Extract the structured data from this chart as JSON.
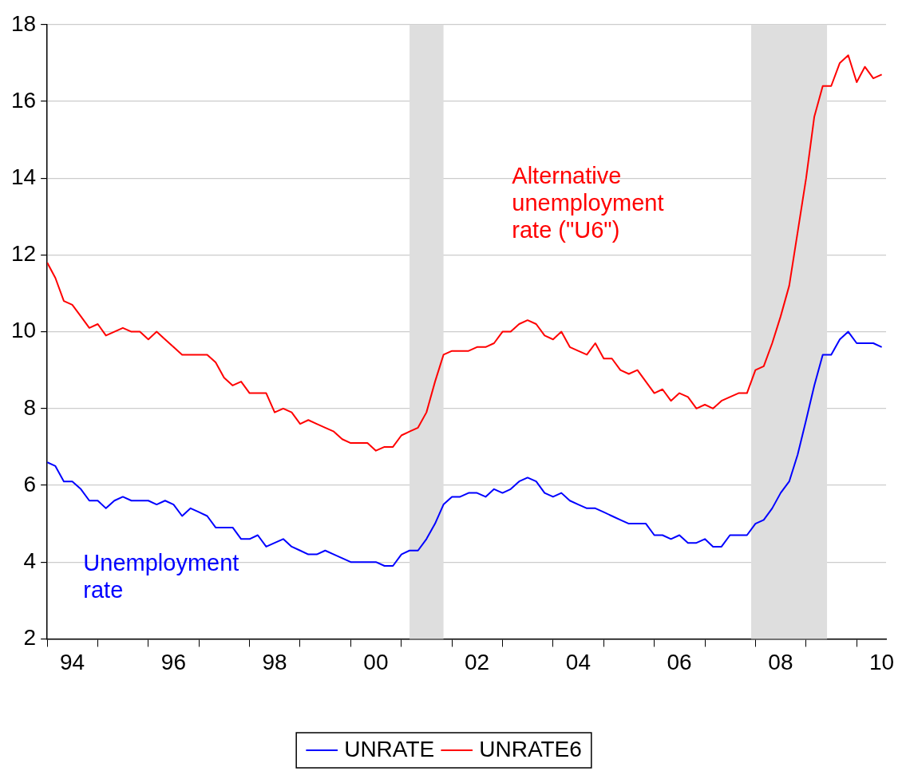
{
  "chart_data": {
    "type": "line",
    "x": [
      "1994-01",
      "1994-03",
      "1994-05",
      "1994-07",
      "1994-09",
      "1994-11",
      "1995-01",
      "1995-03",
      "1995-05",
      "1995-07",
      "1995-09",
      "1995-11",
      "1996-01",
      "1996-03",
      "1996-05",
      "1996-07",
      "1996-09",
      "1996-11",
      "1997-01",
      "1997-03",
      "1997-05",
      "1997-07",
      "1997-09",
      "1997-11",
      "1998-01",
      "1998-03",
      "1998-05",
      "1998-07",
      "1998-09",
      "1998-11",
      "1999-01",
      "1999-03",
      "1999-05",
      "1999-07",
      "1999-09",
      "1999-11",
      "2000-01",
      "2000-03",
      "2000-05",
      "2000-07",
      "2000-09",
      "2000-11",
      "2001-01",
      "2001-03",
      "2001-05",
      "2001-07",
      "2001-09",
      "2001-11",
      "2002-01",
      "2002-03",
      "2002-05",
      "2002-07",
      "2002-09",
      "2002-11",
      "2003-01",
      "2003-03",
      "2003-05",
      "2003-07",
      "2003-09",
      "2003-11",
      "2004-01",
      "2004-03",
      "2004-05",
      "2004-07",
      "2004-09",
      "2004-11",
      "2005-01",
      "2005-03",
      "2005-05",
      "2005-07",
      "2005-09",
      "2005-11",
      "2006-01",
      "2006-03",
      "2006-05",
      "2006-07",
      "2006-09",
      "2006-11",
      "2007-01",
      "2007-03",
      "2007-05",
      "2007-07",
      "2007-09",
      "2007-11",
      "2008-01",
      "2008-03",
      "2008-05",
      "2008-07",
      "2008-09",
      "2008-11",
      "2009-01",
      "2009-03",
      "2009-05",
      "2009-07",
      "2009-09",
      "2009-11",
      "2010-01",
      "2010-03",
      "2010-05",
      "2010-07"
    ],
    "series": [
      {
        "name": "UNRATE",
        "color": "#0000ff",
        "values": [
          6.6,
          6.5,
          6.1,
          6.1,
          5.9,
          5.6,
          5.6,
          5.4,
          5.6,
          5.7,
          5.6,
          5.6,
          5.6,
          5.5,
          5.6,
          5.5,
          5.2,
          5.4,
          5.3,
          5.2,
          4.9,
          4.9,
          4.9,
          4.6,
          4.6,
          4.7,
          4.4,
          4.5,
          4.6,
          4.4,
          4.3,
          4.2,
          4.2,
          4.3,
          4.2,
          4.1,
          4.0,
          4.0,
          4.0,
          4.0,
          3.9,
          3.9,
          4.2,
          4.3,
          4.3,
          4.6,
          5.0,
          5.5,
          5.7,
          5.7,
          5.8,
          5.8,
          5.7,
          5.9,
          5.8,
          5.9,
          6.1,
          6.2,
          6.1,
          5.8,
          5.7,
          5.8,
          5.6,
          5.5,
          5.4,
          5.4,
          5.3,
          5.2,
          5.1,
          5.0,
          5.0,
          5.0,
          4.7,
          4.7,
          4.6,
          4.7,
          4.5,
          4.5,
          4.6,
          4.4,
          4.4,
          4.7,
          4.7,
          4.7,
          5.0,
          5.1,
          5.4,
          5.8,
          6.1,
          6.8,
          7.7,
          8.6,
          9.4,
          9.4,
          9.8,
          10.0,
          9.7,
          9.7,
          9.7,
          9.6
        ]
      },
      {
        "name": "UNRATE6",
        "color": "#ff0000",
        "values": [
          11.8,
          11.4,
          10.8,
          10.7,
          10.4,
          10.1,
          10.2,
          9.9,
          10.0,
          10.1,
          10.0,
          10.0,
          9.8,
          10.0,
          9.8,
          9.6,
          9.4,
          9.4,
          9.4,
          9.4,
          9.2,
          8.8,
          8.6,
          8.7,
          8.4,
          8.4,
          8.4,
          7.9,
          8.0,
          7.9,
          7.6,
          7.7,
          7.6,
          7.5,
          7.4,
          7.2,
          7.1,
          7.1,
          7.1,
          6.9,
          7.0,
          7.0,
          7.3,
          7.4,
          7.5,
          7.9,
          8.7,
          9.4,
          9.5,
          9.5,
          9.5,
          9.6,
          9.6,
          9.7,
          10.0,
          10.0,
          10.2,
          10.3,
          10.2,
          9.9,
          9.8,
          10.0,
          9.6,
          9.5,
          9.4,
          9.7,
          9.3,
          9.3,
          9.0,
          8.9,
          9.0,
          8.7,
          8.4,
          8.5,
          8.2,
          8.4,
          8.3,
          8.0,
          8.1,
          8.0,
          8.2,
          8.3,
          8.4,
          8.4,
          9.0,
          9.1,
          9.7,
          10.4,
          11.2,
          12.6,
          14.0,
          15.6,
          16.4,
          16.4,
          17.0,
          17.2,
          16.5,
          16.9,
          16.6,
          16.7
        ]
      }
    ],
    "xlim": [
      "1994-01",
      "2010-08"
    ],
    "xticks": [
      {
        "value": "1994-01",
        "label": null
      },
      {
        "value": "1994-07",
        "label": "94"
      },
      {
        "value": "1995-01",
        "label": null
      },
      {
        "value": "1996-01",
        "label": null
      },
      {
        "value": "1996-07",
        "label": "96"
      },
      {
        "value": "1997-01",
        "label": null
      },
      {
        "value": "1998-01",
        "label": null
      },
      {
        "value": "1998-07",
        "label": "98"
      },
      {
        "value": "1999-01",
        "label": null
      },
      {
        "value": "2000-01",
        "label": null
      },
      {
        "value": "2000-07",
        "label": "00"
      },
      {
        "value": "2001-01",
        "label": null
      },
      {
        "value": "2002-01",
        "label": null
      },
      {
        "value": "2002-07",
        "label": "02"
      },
      {
        "value": "2003-01",
        "label": null
      },
      {
        "value": "2004-01",
        "label": null
      },
      {
        "value": "2004-07",
        "label": "04"
      },
      {
        "value": "2005-01",
        "label": null
      },
      {
        "value": "2006-01",
        "label": null
      },
      {
        "value": "2006-07",
        "label": "06"
      },
      {
        "value": "2007-01",
        "label": null
      },
      {
        "value": "2008-01",
        "label": null
      },
      {
        "value": "2008-07",
        "label": "08"
      },
      {
        "value": "2009-01",
        "label": null
      },
      {
        "value": "2010-01",
        "label": null
      },
      {
        "value": "2010-07",
        "label": "10"
      }
    ],
    "ylim": [
      2,
      18
    ],
    "yticks": [
      2,
      4,
      6,
      8,
      10,
      12,
      14,
      16,
      18
    ],
    "grid": "y",
    "legend": "bottom",
    "bands": [
      {
        "axis": "x",
        "from": "2001-03",
        "to": "2001-11",
        "color": "#dedede"
      },
      {
        "axis": "x",
        "from": "2007-12",
        "to": "2009-06",
        "color": "#dedede"
      }
    ],
    "annotations": [
      "Unemployment rate",
      "Alternative unemployment rate (\"U6\")"
    ]
  }
}
